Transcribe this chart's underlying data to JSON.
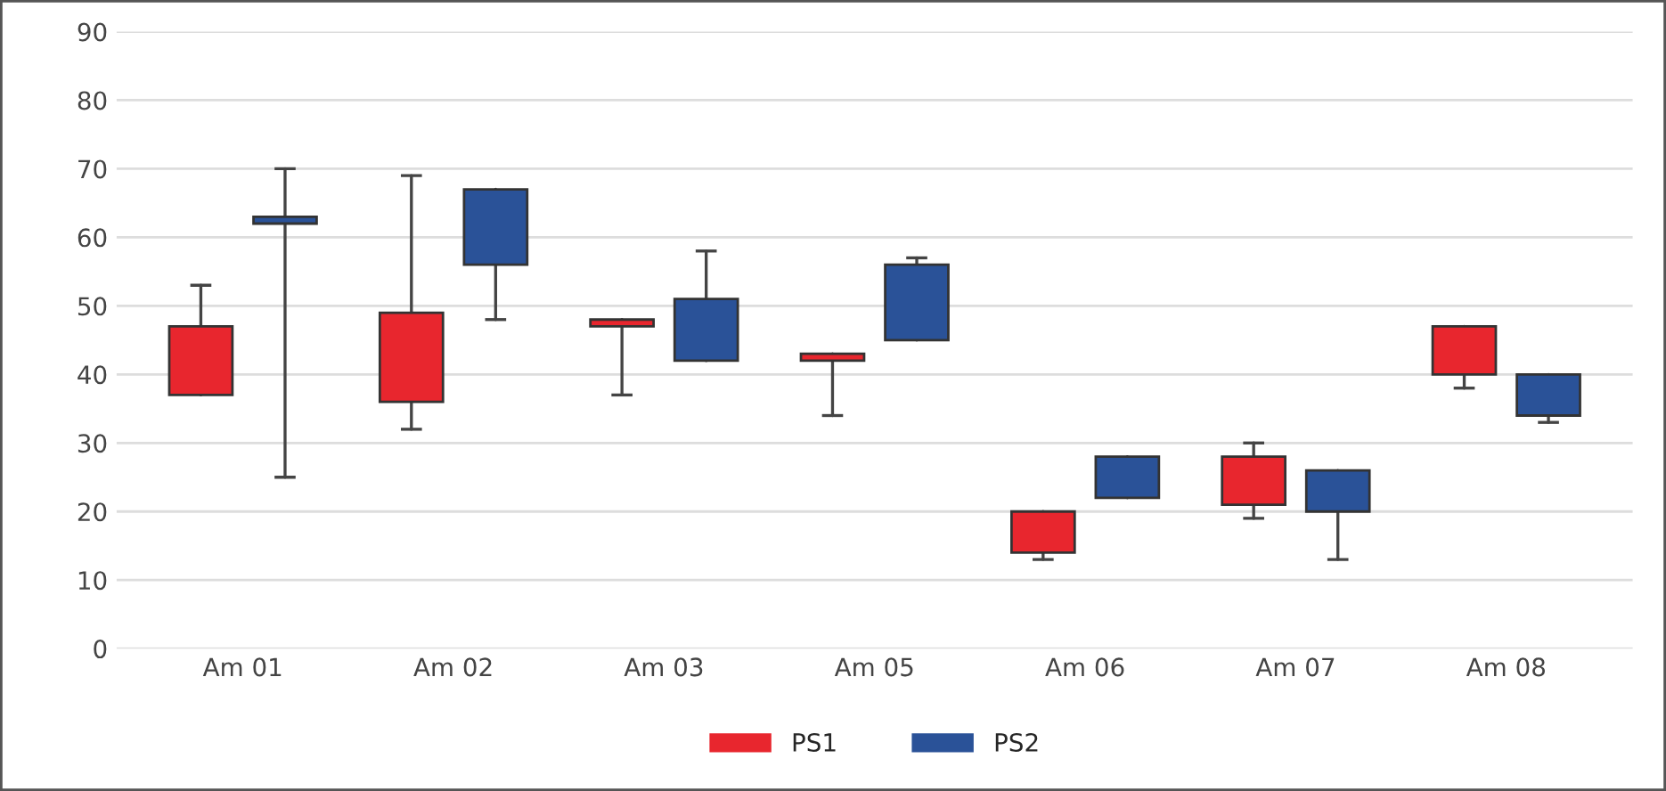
{
  "chart_data": {
    "type": "candlestick",
    "categories": [
      "Am 01",
      "Am 02",
      "Am 03",
      "Am 05",
      "Am 06",
      "Am 07",
      "Am 08"
    ],
    "series": [
      {
        "name": "PS1",
        "color": "#e8262e",
        "ohlc": [
          [
            37,
            53,
            37,
            47
          ],
          [
            36,
            69,
            32,
            49
          ],
          [
            47,
            48,
            37,
            48
          ],
          [
            42,
            43,
            34,
            43
          ],
          [
            14,
            20,
            13,
            20
          ],
          [
            21,
            30,
            19,
            28
          ],
          [
            40,
            47,
            38,
            47
          ]
        ]
      },
      {
        "name": "PS2",
        "color": "#2a5298",
        "ohlc": [
          [
            62,
            70,
            25,
            63
          ],
          [
            56,
            67,
            48,
            67
          ],
          [
            42,
            58,
            42,
            51
          ],
          [
            45,
            57,
            45,
            56
          ],
          [
            22,
            28,
            22,
            28
          ],
          [
            20,
            26,
            13,
            26
          ],
          [
            34,
            40,
            33,
            40
          ]
        ]
      }
    ],
    "ylim": [
      0,
      90
    ],
    "yticks": [
      0,
      10,
      20,
      30,
      40,
      50,
      60,
      70,
      80,
      90
    ],
    "grid": "y",
    "legend": "bottom"
  }
}
